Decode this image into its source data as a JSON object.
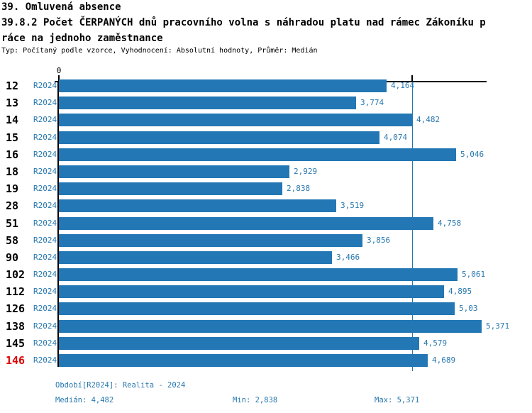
{
  "header": {
    "title": "39. Omluvená absence",
    "subtitle_line1": "39.8.2 Počet ČERPANÝCH dnů pracovního volna s náhradou platu nad rámec Zákoníku p",
    "subtitle_line2": "ráce na jednoho zaměstnance",
    "meta": "Typ: Počítaný podle vzorce, Vyhodnocení: Absolutní hodnoty, Průměr: Medián"
  },
  "chart_data": {
    "type": "bar",
    "orientation": "horizontal",
    "title": "39. Omluvená absence",
    "subtitle": "39.8.2 Počet ČERPANÝCH dnů pracovního volna s náhradou platu nad rámec Zákoníku práce na jednoho zaměstnance",
    "series_name": "R2024",
    "x_axis_zero_label": "0",
    "xlim": [
      0,
      5.43
    ],
    "median": 4.482,
    "min": 2.838,
    "max": 5.371,
    "grid": false,
    "categories": [
      "12",
      "13",
      "14",
      "15",
      "16",
      "18",
      "19",
      "28",
      "51",
      "58",
      "90",
      "102",
      "112",
      "126",
      "138",
      "145",
      "146"
    ],
    "rows": [
      {
        "category": "12",
        "period": "R2024",
        "value": 4.164,
        "label": "4,164",
        "highlight": false
      },
      {
        "category": "13",
        "period": "R2024",
        "value": 3.774,
        "label": "3,774",
        "highlight": false
      },
      {
        "category": "14",
        "period": "R2024",
        "value": 4.482,
        "label": "4,482",
        "highlight": false
      },
      {
        "category": "15",
        "period": "R2024",
        "value": 4.074,
        "label": "4,074",
        "highlight": false
      },
      {
        "category": "16",
        "period": "R2024",
        "value": 5.046,
        "label": "5,046",
        "highlight": false
      },
      {
        "category": "18",
        "period": "R2024",
        "value": 2.929,
        "label": "2,929",
        "highlight": false
      },
      {
        "category": "19",
        "period": "R2024",
        "value": 2.838,
        "label": "2,838",
        "highlight": false
      },
      {
        "category": "28",
        "period": "R2024",
        "value": 3.519,
        "label": "3,519",
        "highlight": false
      },
      {
        "category": "51",
        "period": "R2024",
        "value": 4.758,
        "label": "4,758",
        "highlight": false
      },
      {
        "category": "58",
        "period": "R2024",
        "value": 3.856,
        "label": "3,856",
        "highlight": false
      },
      {
        "category": "90",
        "period": "R2024",
        "value": 3.466,
        "label": "3,466",
        "highlight": false
      },
      {
        "category": "102",
        "period": "R2024",
        "value": 5.061,
        "label": "5,061",
        "highlight": false
      },
      {
        "category": "112",
        "period": "R2024",
        "value": 4.895,
        "label": "4,895",
        "highlight": false
      },
      {
        "category": "126",
        "period": "R2024",
        "value": 5.03,
        "label": "5,03",
        "highlight": false
      },
      {
        "category": "138",
        "period": "R2024",
        "value": 5.371,
        "label": "5,371",
        "highlight": false
      },
      {
        "category": "145",
        "period": "R2024",
        "value": 4.579,
        "label": "4,579",
        "highlight": false
      },
      {
        "category": "146",
        "period": "R2024",
        "value": 4.689,
        "label": "4,689",
        "highlight": true
      }
    ],
    "colors": {
      "bar": "#2277b4",
      "blue_text": "#2878b0",
      "highlight_text": "#dd0000",
      "axis": "#000000"
    }
  },
  "footer": {
    "period_line": "Období[R2024]: Realita - 2024",
    "median_label": "Medián: 4,482",
    "min_label": "Min: 2,838",
    "max_label": "Max: 5,371"
  }
}
